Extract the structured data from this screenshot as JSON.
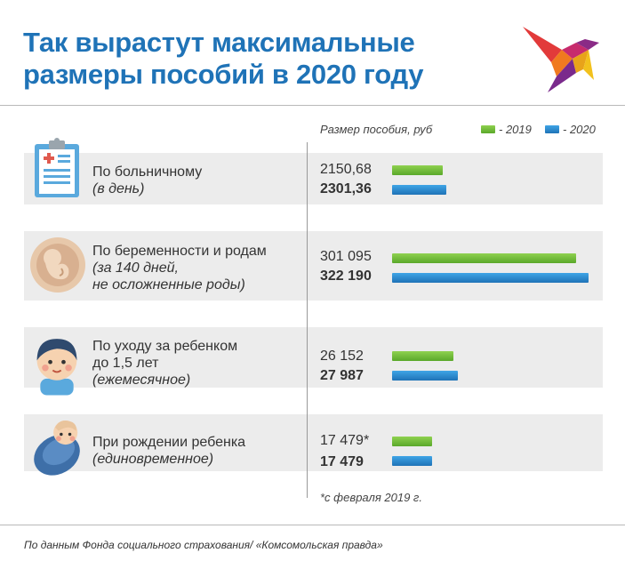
{
  "title_line1": "Так вырастут максимальные",
  "title_line2": "размеры пособий в 2020 году",
  "header_label": "Размер пособия, руб",
  "legend": [
    {
      "label": "- 2019",
      "color": "#6abf3a"
    },
    {
      "label": "- 2020",
      "color": "#2a8ad3"
    }
  ],
  "colors": {
    "title": "#1f73b7",
    "series_2019": "#6abf3a",
    "series_2020": "#2a8ad3",
    "row_bg": "#ececec"
  },
  "icons": [
    "clipboard-medical-icon",
    "fetus-icon",
    "child-face-icon",
    "swaddled-baby-icon",
    "swallow-bird-logo"
  ],
  "chart_data": {
    "type": "bar",
    "orientation": "horizontal",
    "categories": [
      {
        "name": "По больничному",
        "note": "(в день)"
      },
      {
        "name": "По беременности и родам",
        "note": "(за 140 дней,",
        "note2": "не осложненные роды)"
      },
      {
        "name": "По уходу за ребенком",
        "name2": "до 1,5 лет",
        "note": "(ежемесячное)"
      },
      {
        "name": "При рождении ребенка",
        "note": "(единовременное)"
      }
    ],
    "series": [
      {
        "name": "2019",
        "values": [
          2150.68,
          301095,
          26152,
          17479
        ],
        "labels": [
          "2150,68",
          "301 095",
          "26 152",
          "17 479*"
        ]
      },
      {
        "name": "2020",
        "values": [
          2301.36,
          322190,
          27987,
          17479
        ],
        "labels": [
          "2301,36",
          "322 190",
          "27 987",
          "17 479"
        ]
      }
    ],
    "ylabel": "Размер пособия, руб",
    "legend_position": "top-right"
  },
  "footnote": "*с февраля 2019 г.",
  "source": "По данным Фонда социального страхования/ «Комсомольская правда»"
}
